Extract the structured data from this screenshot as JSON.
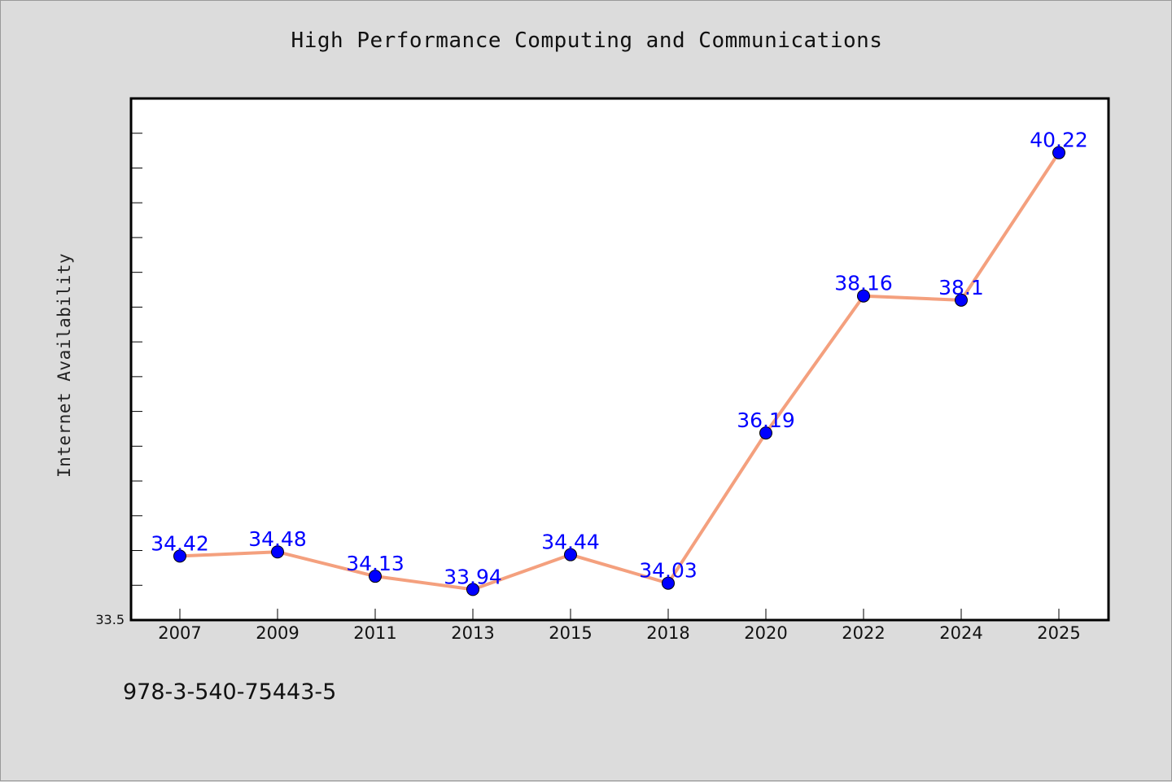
{
  "colors": {
    "background": "#dcdcdc",
    "plot_area": "#ffffff",
    "line": "#f4a07e",
    "marker": "#0000ff",
    "data_label": "#0000ff"
  },
  "footer": {
    "code": "978-3-540-75443-5"
  },
  "chart_data": {
    "type": "line",
    "title": "High Performance Computing and Communications",
    "xlabel": "",
    "ylabel": "Internet Availability",
    "categories": [
      "2007",
      "2009",
      "2011",
      "2013",
      "2015",
      "2018",
      "2020",
      "2022",
      "2024",
      "2025"
    ],
    "series": [
      {
        "values": [
          34.42,
          34.48,
          34.13,
          33.94,
          34.44,
          34.03,
          36.19,
          38.16,
          38.1,
          40.22
        ],
        "labels": [
          "34.42",
          "34.48",
          "34.13",
          "33.94",
          "34.44",
          "34.03",
          "36.19",
          "38.16",
          "38.1",
          "40.22"
        ]
      }
    ],
    "ylim": [
      33.5,
      41.0
    ],
    "y_min_label": "33.5",
    "y_tick_step": 0.5,
    "grid": false,
    "legend": "none",
    "marker": "circle"
  }
}
